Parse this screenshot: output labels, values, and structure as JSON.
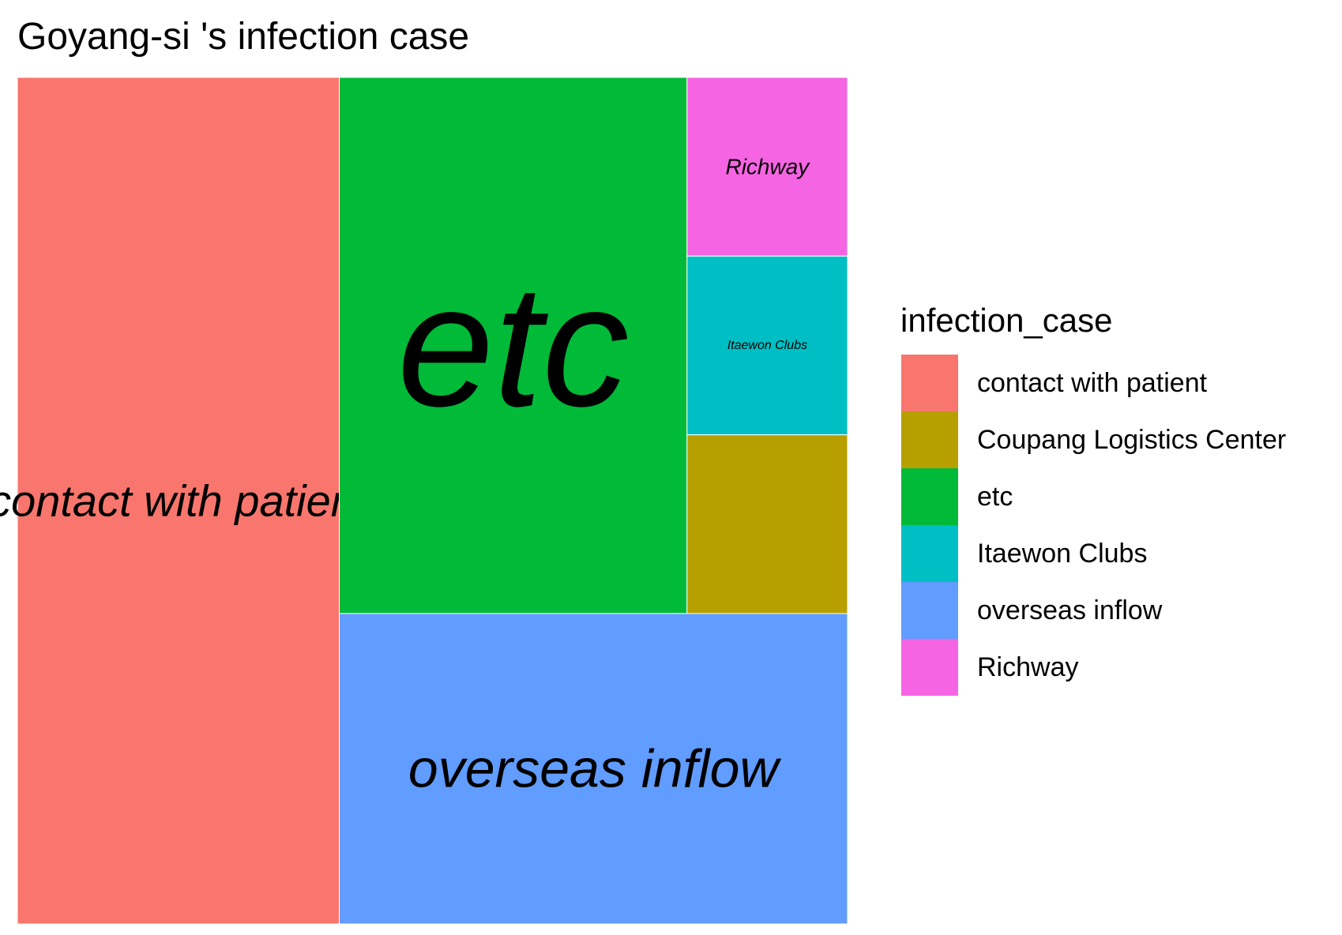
{
  "chart_data": {
    "type": "treemap",
    "title": "Goyang-si 's infection case",
    "legend": {
      "title": "infection_case",
      "position": "right"
    },
    "categories": [
      "contact with patient",
      "Coupang Logistics Center",
      "etc",
      "Itaewon Clubs",
      "overseas inflow",
      "Richway"
    ],
    "values": [
      19,
      2,
      13,
      2,
      11,
      2
    ],
    "colors": {
      "contact with patient": "#F8766D",
      "Coupang Logistics Center": "#B79F00",
      "etc": "#00BA38",
      "Itaewon Clubs": "#00BFC4",
      "overseas inflow": "#619CFF",
      "Richway": "#F564E3"
    },
    "tile_labels": {
      "contact with patient": "contact with patient",
      "Coupang Logistics Center": "",
      "etc": "etc",
      "Itaewon Clubs": "Itaewon Clubs",
      "overseas inflow": "overseas inflow",
      "Richway": "Richway"
    }
  }
}
